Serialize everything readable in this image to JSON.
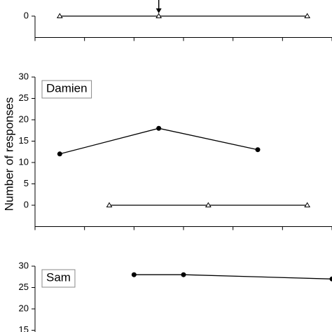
{
  "chart_data": [
    {
      "type": "line",
      "xlim": [
        0.5,
        6.5
      ],
      "xticks": [
        0.5,
        1.5,
        2.5,
        3.5,
        4.5,
        5.5,
        6.5
      ],
      "ylim": [
        -5,
        30
      ],
      "yticks": [
        0
      ],
      "arrow_x": 3,
      "series": [
        {
          "marker": "triangle",
          "color": "#000000",
          "x": [
            1,
            3,
            6
          ],
          "values": [
            0,
            0,
            0
          ]
        }
      ]
    },
    {
      "type": "line",
      "label": "Damien",
      "ylabel": "Number of responses",
      "xlim": [
        0.5,
        6.5
      ],
      "xticks": [
        0.5,
        1.5,
        2.5,
        3.5,
        4.5,
        5.5,
        6.5
      ],
      "ylim": [
        -5,
        30
      ],
      "yticks": [
        0,
        5,
        10,
        15,
        20,
        25,
        30
      ],
      "series": [
        {
          "marker": "circle",
          "color": "#000000",
          "x": [
            1,
            3,
            5
          ],
          "values": [
            12,
            18,
            13
          ]
        },
        {
          "marker": "triangle",
          "color": "#000000",
          "x": [
            2,
            4,
            6
          ],
          "values": [
            0,
            0,
            0
          ]
        }
      ]
    },
    {
      "type": "line",
      "label": "Sam",
      "xlim": [
        0.5,
        6.5
      ],
      "ylim": [
        -5,
        30
      ],
      "yticks": [
        15,
        20,
        25,
        30
      ],
      "series": [
        {
          "marker": "circle",
          "color": "#000000",
          "x": [
            2.5,
            3.5,
            6.5
          ],
          "values": [
            28,
            28,
            27
          ]
        }
      ]
    }
  ]
}
